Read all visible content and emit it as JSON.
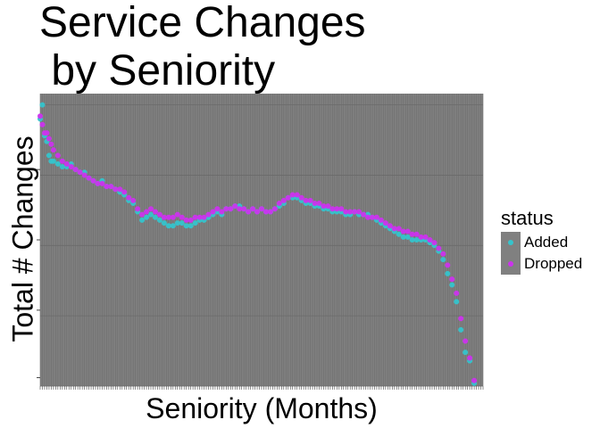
{
  "chart_data": {
    "type": "scatter",
    "title_lines": [
      "Service Changes",
      " by Seniority"
    ],
    "xlabel": "Seniority (Months)",
    "ylabel": "Total # Changes",
    "x_tick_labels_visible": false,
    "y_tick_labels_visible": false,
    "grid": true,
    "panel_background": "#7f7f7f",
    "legend_position": "right",
    "legend": {
      "title": "status",
      "entries": [
        {
          "label": "Added",
          "color": "#35c4cc"
        },
        {
          "label": "Dropped",
          "color": "#cc33ee"
        }
      ]
    },
    "xlim": [
      0,
      200
    ],
    "ylim": [
      0,
      1.04
    ],
    "series": [
      {
        "name": "Added",
        "color": "#35c4cc",
        "points": [
          [
            0,
            0.95
          ],
          [
            1,
            1
          ],
          [
            2,
            0.89
          ],
          [
            3,
            0.87
          ],
          [
            4,
            0.82
          ],
          [
            5,
            0.8
          ],
          [
            6,
            0.8
          ],
          [
            8,
            0.79
          ],
          [
            10,
            0.78
          ],
          [
            12,
            0.78
          ],
          [
            14,
            0.79
          ],
          [
            16,
            0.77
          ],
          [
            18,
            0.76
          ],
          [
            20,
            0.76
          ],
          [
            22,
            0.74
          ],
          [
            24,
            0.73
          ],
          [
            26,
            0.72
          ],
          [
            28,
            0.73
          ],
          [
            30,
            0.71
          ],
          [
            32,
            0.71
          ],
          [
            34,
            0.7
          ],
          [
            36,
            0.69
          ],
          [
            38,
            0.68
          ],
          [
            40,
            0.66
          ],
          [
            42,
            0.65
          ],
          [
            44,
            0.62
          ],
          [
            46,
            0.59
          ],
          [
            48,
            0.6
          ],
          [
            50,
            0.61
          ],
          [
            52,
            0.6
          ],
          [
            54,
            0.59
          ],
          [
            56,
            0.58
          ],
          [
            58,
            0.57
          ],
          [
            60,
            0.57
          ],
          [
            62,
            0.58
          ],
          [
            64,
            0.58
          ],
          [
            66,
            0.57
          ],
          [
            68,
            0.57
          ],
          [
            70,
            0.58
          ],
          [
            72,
            0.59
          ],
          [
            74,
            0.59
          ],
          [
            76,
            0.6
          ],
          [
            78,
            0.61
          ],
          [
            80,
            0.62
          ],
          [
            82,
            0.61
          ],
          [
            84,
            0.63
          ],
          [
            86,
            0.63
          ],
          [
            88,
            0.64
          ],
          [
            90,
            0.64
          ],
          [
            92,
            0.63
          ],
          [
            94,
            0.62
          ],
          [
            96,
            0.63
          ],
          [
            98,
            0.62
          ],
          [
            100,
            0.63
          ],
          [
            102,
            0.62
          ],
          [
            104,
            0.62
          ],
          [
            106,
            0.63
          ],
          [
            108,
            0.64
          ],
          [
            110,
            0.65
          ],
          [
            112,
            0.67
          ],
          [
            114,
            0.67
          ],
          [
            116,
            0.67
          ],
          [
            118,
            0.66
          ],
          [
            120,
            0.65
          ],
          [
            122,
            0.65
          ],
          [
            124,
            0.64
          ],
          [
            126,
            0.64
          ],
          [
            128,
            0.63
          ],
          [
            130,
            0.63
          ],
          [
            132,
            0.62
          ],
          [
            134,
            0.62
          ],
          [
            136,
            0.62
          ],
          [
            138,
            0.61
          ],
          [
            140,
            0.61
          ],
          [
            142,
            0.62
          ],
          [
            144,
            0.61
          ],
          [
            146,
            0.61
          ],
          [
            148,
            0.61
          ],
          [
            150,
            0.6
          ],
          [
            152,
            0.59
          ],
          [
            154,
            0.58
          ],
          [
            156,
            0.57
          ],
          [
            158,
            0.56
          ],
          [
            160,
            0.55
          ],
          [
            162,
            0.54
          ],
          [
            164,
            0.53
          ],
          [
            166,
            0.53
          ],
          [
            168,
            0.52
          ],
          [
            170,
            0.52
          ],
          [
            172,
            0.52
          ],
          [
            174,
            0.52
          ],
          [
            176,
            0.51
          ],
          [
            178,
            0.5
          ],
          [
            180,
            0.48
          ],
          [
            182,
            0.45
          ],
          [
            184,
            0.4
          ],
          [
            186,
            0.36
          ],
          [
            188,
            0.3
          ],
          [
            190,
            0.2
          ],
          [
            192,
            0.12
          ],
          [
            194,
            0.09
          ],
          [
            196,
            0.01
          ]
        ]
      },
      {
        "name": "Dropped",
        "color": "#cc33ee",
        "points": [
          [
            0,
            0.96
          ],
          [
            1,
            0.93
          ],
          [
            2,
            0.9
          ],
          [
            3,
            0.9
          ],
          [
            4,
            0.88
          ],
          [
            5,
            0.86
          ],
          [
            6,
            0.84
          ],
          [
            8,
            0.82
          ],
          [
            10,
            0.8
          ],
          [
            12,
            0.79
          ],
          [
            14,
            0.78
          ],
          [
            16,
            0.77
          ],
          [
            18,
            0.76
          ],
          [
            20,
            0.75
          ],
          [
            22,
            0.74
          ],
          [
            24,
            0.73
          ],
          [
            26,
            0.72
          ],
          [
            28,
            0.72
          ],
          [
            30,
            0.71
          ],
          [
            32,
            0.71
          ],
          [
            34,
            0.7
          ],
          [
            36,
            0.7
          ],
          [
            38,
            0.69
          ],
          [
            40,
            0.67
          ],
          [
            42,
            0.66
          ],
          [
            44,
            0.63
          ],
          [
            46,
            0.61
          ],
          [
            48,
            0.62
          ],
          [
            50,
            0.63
          ],
          [
            52,
            0.62
          ],
          [
            54,
            0.61
          ],
          [
            56,
            0.6
          ],
          [
            58,
            0.6
          ],
          [
            60,
            0.6
          ],
          [
            62,
            0.61
          ],
          [
            64,
            0.6
          ],
          [
            66,
            0.59
          ],
          [
            68,
            0.59
          ],
          [
            70,
            0.6
          ],
          [
            72,
            0.6
          ],
          [
            74,
            0.6
          ],
          [
            76,
            0.61
          ],
          [
            78,
            0.62
          ],
          [
            80,
            0.63
          ],
          [
            82,
            0.62
          ],
          [
            84,
            0.63
          ],
          [
            86,
            0.63
          ],
          [
            88,
            0.64
          ],
          [
            90,
            0.63
          ],
          [
            92,
            0.63
          ],
          [
            94,
            0.62
          ],
          [
            96,
            0.63
          ],
          [
            98,
            0.62
          ],
          [
            100,
            0.63
          ],
          [
            102,
            0.62
          ],
          [
            104,
            0.62
          ],
          [
            106,
            0.63
          ],
          [
            108,
            0.65
          ],
          [
            110,
            0.66
          ],
          [
            112,
            0.67
          ],
          [
            114,
            0.68
          ],
          [
            116,
            0.68
          ],
          [
            118,
            0.67
          ],
          [
            120,
            0.66
          ],
          [
            122,
            0.66
          ],
          [
            124,
            0.65
          ],
          [
            126,
            0.65
          ],
          [
            128,
            0.64
          ],
          [
            130,
            0.64
          ],
          [
            132,
            0.63
          ],
          [
            134,
            0.63
          ],
          [
            136,
            0.63
          ],
          [
            138,
            0.62
          ],
          [
            140,
            0.62
          ],
          [
            142,
            0.62
          ],
          [
            144,
            0.62
          ],
          [
            146,
            0.61
          ],
          [
            148,
            0.6
          ],
          [
            150,
            0.6
          ],
          [
            152,
            0.6
          ],
          [
            154,
            0.59
          ],
          [
            156,
            0.58
          ],
          [
            158,
            0.57
          ],
          [
            160,
            0.56
          ],
          [
            162,
            0.56
          ],
          [
            164,
            0.55
          ],
          [
            166,
            0.55
          ],
          [
            168,
            0.54
          ],
          [
            170,
            0.54
          ],
          [
            172,
            0.53
          ],
          [
            174,
            0.53
          ],
          [
            176,
            0.52
          ],
          [
            178,
            0.51
          ],
          [
            180,
            0.49
          ],
          [
            182,
            0.47
          ],
          [
            184,
            0.43
          ],
          [
            186,
            0.38
          ],
          [
            188,
            0.33
          ],
          [
            190,
            0.24
          ],
          [
            192,
            0.16
          ],
          [
            194,
            0.1
          ],
          [
            196,
            0.02
          ]
        ]
      }
    ]
  }
}
